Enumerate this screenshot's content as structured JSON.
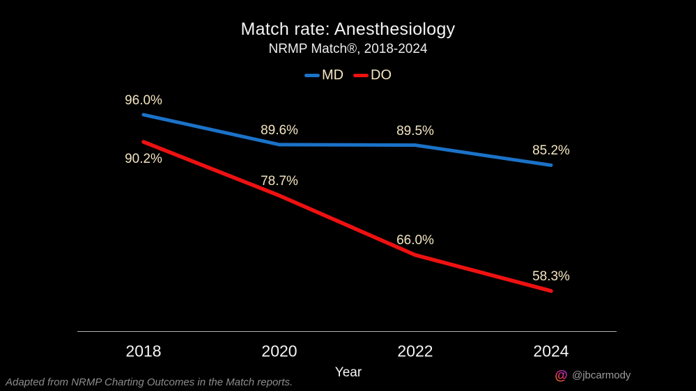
{
  "header": {
    "title": "Match rate: Anesthesiology",
    "subtitle": "NRMP Match®, 2018-2024"
  },
  "chart_data": {
    "type": "line",
    "x": [
      2018,
      2020,
      2022,
      2024
    ],
    "x_tick_labels": [
      "2018",
      "2020",
      "2022",
      "2024"
    ],
    "xlabel": "Year",
    "ylim": [
      50,
      100
    ],
    "grid": false,
    "legend_position": "top",
    "axis_line_color": "#b3b3b3",
    "value_label_color": "#f3e5c1",
    "background_color": "#000000",
    "series": [
      {
        "name": "MD",
        "color": "#1b72c8",
        "values": [
          96.0,
          89.6,
          89.5,
          85.2
        ],
        "value_labels": [
          "96.0%",
          "89.6%",
          "89.5%",
          "85.2%"
        ],
        "label_positions": [
          "above",
          "above",
          "above",
          "above"
        ]
      },
      {
        "name": "DO",
        "color": "#ee1111",
        "values": [
          90.2,
          78.7,
          66.0,
          58.3
        ],
        "value_labels": [
          "90.2%",
          "78.7%",
          "66.0%",
          "58.3%"
        ],
        "label_positions": [
          "below",
          "above",
          "above",
          "above"
        ]
      }
    ]
  },
  "footer": {
    "source_note": "Adapted from NRMP Charting Outcomes in the Match reports.",
    "credit_handle": "@jbcarmody",
    "threads_icon_gradient": [
      "#a23bf6",
      "#e1306c",
      "#ff8b00"
    ]
  }
}
